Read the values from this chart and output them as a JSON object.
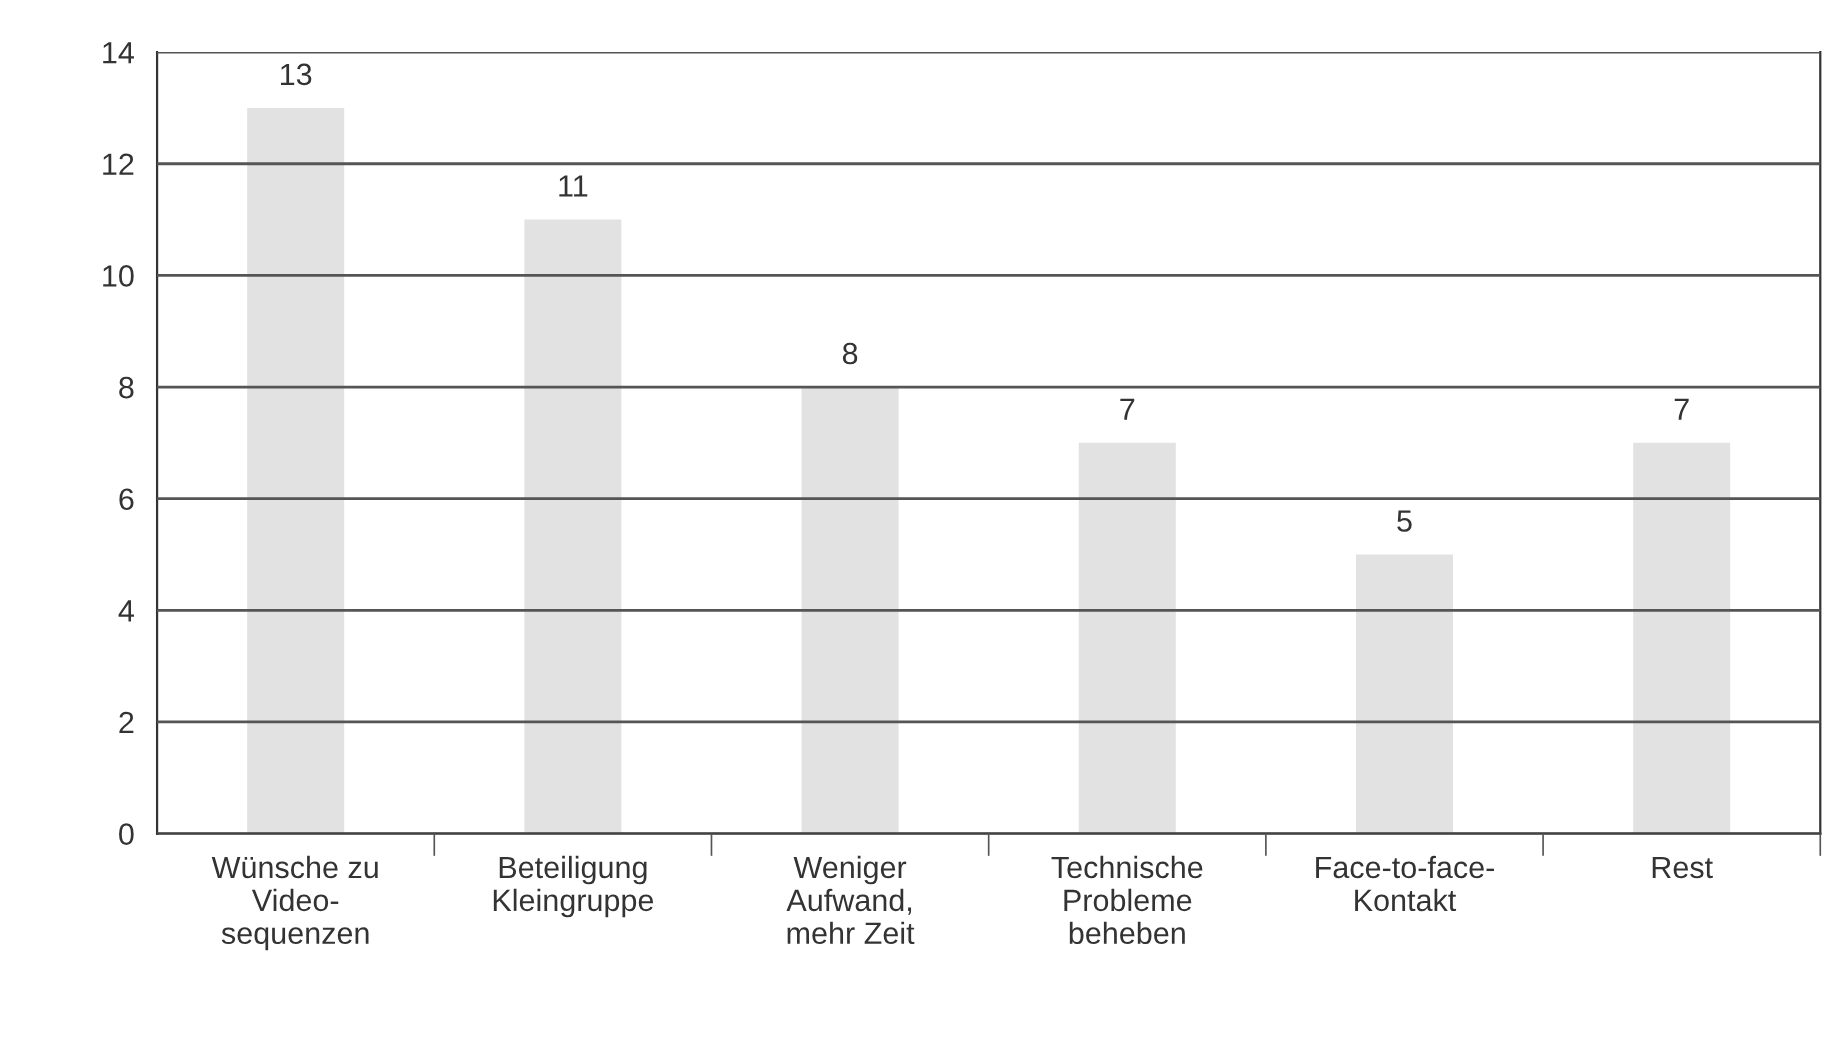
{
  "chart_data": {
    "type": "bar",
    "categories": [
      "Wünsche zu\nVideo-\nsequenzen",
      "Beteiligung\nKleingruppe",
      "Weniger\nAufwand,\nmehr Zeit",
      "Technische\nProbleme\nbeheben",
      "Face-to-face-\nKontakt",
      "Rest"
    ],
    "values": [
      13,
      11,
      8,
      7,
      5,
      7
    ],
    "color": "#e2e2e2",
    "ylim": [
      0,
      14
    ],
    "yticks": [
      0,
      2,
      4,
      6,
      8,
      10,
      12,
      14
    ],
    "grid": "y",
    "data_labels": true
  }
}
